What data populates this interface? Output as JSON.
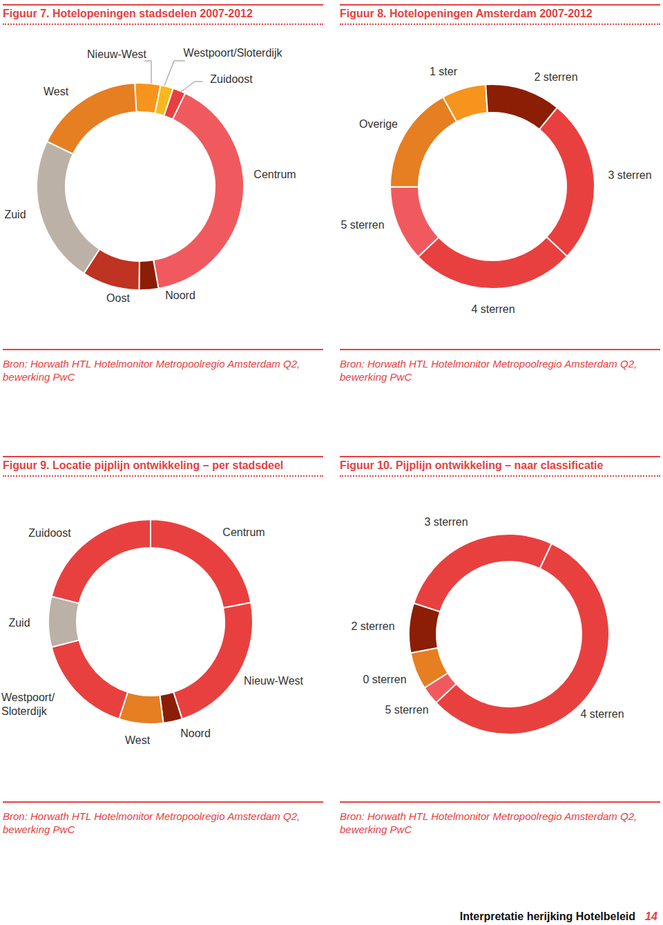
{
  "chart_data": [
    {
      "type": "pie",
      "title": "Figuur 7. Hotelopeningen stadsdelen 2007-2012",
      "categories": [
        "Nieuw-West",
        "Westpoort/Sloterdijk",
        "Zuidoost",
        "Centrum",
        "Noord",
        "Oost",
        "Zuid",
        "West"
      ],
      "values": [
        4,
        2,
        2,
        40,
        3,
        9,
        23,
        17
      ],
      "colors": [
        "#F7941D",
        "#F9B81B",
        "#E8403F",
        "#F05A5E",
        "#8B1E05",
        "#BE3322",
        "#BCB1A6",
        "#E67E22"
      ],
      "annotations": [
        "Bron: Horwath HTL Hotelmonitor Metropoolregio Amsterdam Q2, bewerking PwC"
      ]
    },
    {
      "type": "pie",
      "title": "Figuur 8. Hotelopeningen Amsterdam 2007-2012",
      "categories": [
        "1 ster",
        "2 sterren",
        "3 sterren",
        "4 sterren",
        "5 sterren",
        "Overige"
      ],
      "values": [
        7,
        12,
        26,
        26,
        12,
        17
      ],
      "colors": [
        "#F7941D",
        "#8B1E05",
        "#E8403F",
        "#E8403F",
        "#F05A5E",
        "#E67E22"
      ],
      "annotations": [
        "Bron: Horwath HTL Hotelmonitor Metropoolregio Amsterdam Q2, bewerking PwC"
      ]
    },
    {
      "type": "pie",
      "title": "Figuur 9. Locatie pijplijn ontwikkeling – per stadsdeel",
      "categories": [
        "Centrum",
        "Nieuw-West",
        "Noord",
        "West",
        "Westpoort/ Sloterdijk",
        "Zuid",
        "Zuidoost"
      ],
      "values": [
        22,
        23,
        3,
        7,
        16,
        8,
        21
      ],
      "colors": [
        "#E8403F",
        "#E8403F",
        "#8B1E05",
        "#E67E22",
        "#E8403F",
        "#BCB1A6",
        "#E8403F"
      ],
      "annotations": [
        "Bron: Horwath HTL Hotelmonitor Metropoolregio Amsterdam Q2, bewerking PwC"
      ]
    },
    {
      "type": "pie",
      "title": "Figuur 10. Pijplijn ontwikkeling – naar classificatie",
      "categories": [
        "3 sterren",
        "4 sterren",
        "5 sterren",
        "0 sterren",
        "2 sterren"
      ],
      "values": [
        27,
        56,
        3,
        6,
        8
      ],
      "colors": [
        "#E8403F",
        "#E8403F",
        "#F05A5E",
        "#E67E22",
        "#8B1E05"
      ],
      "annotations": [
        "Bron: Horwath HTL Hotelmonitor Metropoolregio Amsterdam Q2, bewerking PwC"
      ]
    }
  ],
  "footer": {
    "text": "Interpretatie herijking Hotelbeleid",
    "page": 14
  }
}
